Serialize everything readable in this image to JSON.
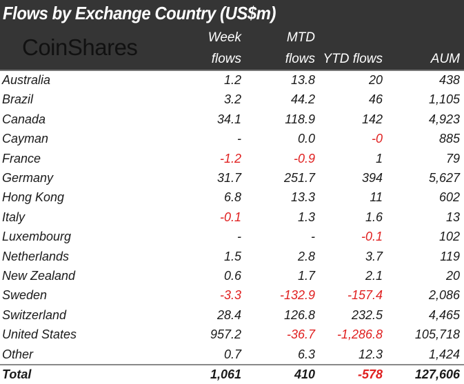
{
  "title": "Flows by Exchange Country (US$m)",
  "logo": "CoinShares",
  "colors": {
    "header_bg": "#353535",
    "negative": "#e02020"
  },
  "chart_data": {
    "type": "table",
    "title": "Flows by Exchange Country (US$m)",
    "columns": [
      {
        "line1": "Week",
        "line2": "flows"
      },
      {
        "line1": "MTD",
        "line2": "flows"
      },
      {
        "line1": "",
        "line2": "YTD flows"
      },
      {
        "line1": "",
        "line2": "AUM"
      }
    ],
    "rows": [
      {
        "name": "Australia",
        "values": [
          "1.2",
          "13.8",
          "20",
          "438"
        ]
      },
      {
        "name": "Brazil",
        "values": [
          "3.2",
          "44.2",
          "46",
          "1,105"
        ]
      },
      {
        "name": "Canada",
        "values": [
          "34.1",
          "118.9",
          "142",
          "4,923"
        ]
      },
      {
        "name": "Cayman",
        "values": [
          "-",
          "0.0",
          "-0",
          "885"
        ]
      },
      {
        "name": "France",
        "values": [
          "-1.2",
          "-0.9",
          "1",
          "79"
        ]
      },
      {
        "name": "Germany",
        "values": [
          "31.7",
          "251.7",
          "394",
          "5,627"
        ]
      },
      {
        "name": "Hong Kong",
        "values": [
          "6.8",
          "13.3",
          "11",
          "602"
        ]
      },
      {
        "name": "Italy",
        "values": [
          "-0.1",
          "1.3",
          "1.6",
          "13"
        ]
      },
      {
        "name": "Luxembourg",
        "values": [
          "-",
          "-",
          "-0.1",
          "102"
        ]
      },
      {
        "name": "Netherlands",
        "values": [
          "1.5",
          "2.8",
          "3.7",
          "119"
        ]
      },
      {
        "name": "New Zealand",
        "values": [
          "0.6",
          "1.7",
          "2.1",
          "20"
        ]
      },
      {
        "name": "Sweden",
        "values": [
          "-3.3",
          "-132.9",
          "-157.4",
          "2,086"
        ]
      },
      {
        "name": "Switzerland",
        "values": [
          "28.4",
          "126.8",
          "232.5",
          "4,465"
        ]
      },
      {
        "name": "United States",
        "values": [
          "957.2",
          "-36.7",
          "-1,286.8",
          "105,718"
        ]
      },
      {
        "name": "Other",
        "values": [
          "0.7",
          "6.3",
          "12.3",
          "1,424"
        ]
      }
    ],
    "total": {
      "name": "Total",
      "values": [
        "1,061",
        "410",
        "-578",
        "127,606"
      ]
    }
  }
}
